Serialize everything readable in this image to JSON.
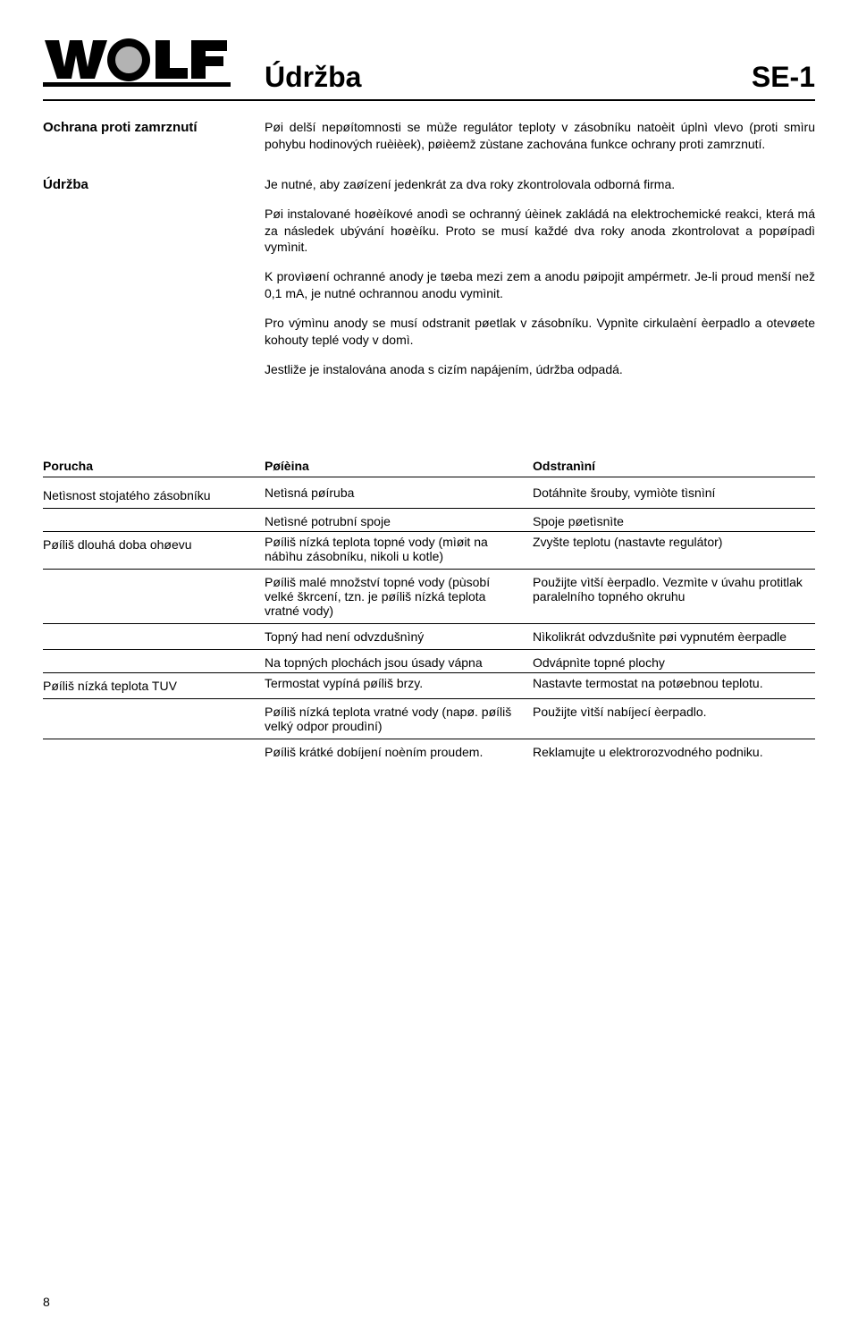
{
  "header": {
    "title": "Údržba",
    "code": "SE-1"
  },
  "sections": [
    {
      "label": "Ochrana proti zamrznutí",
      "paragraphs": [
        "Pøi delší nepøítomnosti se mùže regulátor teploty v zásobníku natoèit úplnì vlevo (proti smìru pohybu hodinových ruèièek), pøièemž zùstane zachována funkce ochrany proti zamrznutí."
      ]
    },
    {
      "label": "Údržba",
      "paragraphs": [
        "Je nutné, aby zaøízení jedenkrát za dva roky zkontrolovala odborná firma.",
        "Pøi instalované hoøèíkové anodì se ochranný úèinek zakládá na elektrochemické reakci, která má za následek ubývání hoøèíku. Proto se musí každé dva roky anoda zkontrolovat a popøípadì vymìnit.",
        "K provìøení ochranné anody je tøeba mezi zem a anodu pøipojit ampérmetr.\nJe-li proud menší než 0,1 mA, je nutné ochrannou anodu vymìnit.",
        "Pro výmìnu anody se musí odstranit pøetlak v zásobníku. Vypnìte cirkulaèní èerpadlo a otevøete kohouty teplé vody v domì.",
        "Jestliže je instalována anoda s cizím napájením, údržba odpadá."
      ]
    }
  ],
  "troubleshoot": {
    "headers": {
      "c1": "Porucha",
      "c2": "Pøíèina",
      "c3": "Odstranìní"
    },
    "groups": [
      {
        "label": "Netìsnost stojatého zásobníku",
        "rows": [
          {
            "c2": "Netìsná pøíruba",
            "c3": "Dotáhnìte šrouby, vymìòte tìsnìní"
          },
          {
            "c2": "Netìsné potrubní spoje",
            "c3": "Spoje pøetìsnìte"
          }
        ]
      },
      {
        "label": "Pøíliš dlouhá doba ohøevu",
        "rows": [
          {
            "c2": "Pøíliš nízká teplota topné vody (mìøit na nábìhu zásobníku, nikoli u kotle)",
            "c3": "Zvyšte teplotu (nastavte regulátor)"
          },
          {
            "c2": "Pøíliš malé množství topné vody (pùsobí velké škrcení, tzn. je pøíliš nízká teplota vratné vody)",
            "c3": "Použijte vìtší èerpadlo. Vezmìte v úvahu protitlak paralelního topného okruhu"
          },
          {
            "c2": "Topný had není odvzdušnìný",
            "c3": "Nìkolikrát odvzdušnìte pøi vypnutém èerpadle"
          },
          {
            "c2": "Na topných plochách jsou úsady vápna",
            "c3": "Odvápnìte topné plochy"
          }
        ]
      },
      {
        "label": "Pøíliš nízká teplota TUV",
        "rows": [
          {
            "c2": "Termostat vypíná pøíliš brzy.",
            "c3": "Nastavte termostat na potøebnou teplotu."
          },
          {
            "c2": "Pøíliš nízká teplota vratné vody (napø. pøíliš velký odpor proudìní)",
            "c3": "Použijte vìtší nabíjecí èerpadlo."
          },
          {
            "c2": "Pøíliš krátké dobíjení noèním proudem.",
            "c3": "Reklamujte u elektrorozvodného podniku."
          }
        ]
      }
    ]
  },
  "pageNumber": "8"
}
